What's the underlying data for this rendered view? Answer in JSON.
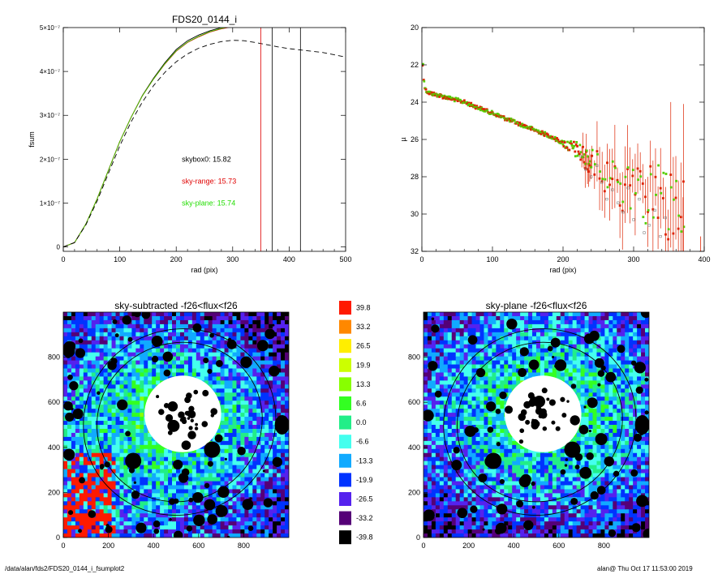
{
  "footer": {
    "path": "/data/alan/fds2/FDS20_0144_i_fsumplot2",
    "stamp": "alan@  Thu Oct 17 11:53:00 2019"
  },
  "chart_data": [
    {
      "id": "fsum",
      "type": "line",
      "title": "FDS20_0144_i",
      "xlabel": "rad (pix)",
      "ylabel": "fsum",
      "xlim": [
        0,
        500
      ],
      "ylim": [
        -1e-08,
        5e-07
      ],
      "xticks": [
        "0",
        "100",
        "200",
        "300",
        "400",
        "500"
      ],
      "yticks": [
        {
          "v": 0,
          "label": "0"
        },
        {
          "v": 1e-07,
          "label": "1×10⁻⁷"
        },
        {
          "v": 2e-07,
          "label": "2×10⁻⁷"
        },
        {
          "v": 3e-07,
          "label": "3×10⁻⁷"
        },
        {
          "v": 4e-07,
          "label": "4×10⁻⁷"
        },
        {
          "v": 5e-07,
          "label": "5×10⁻⁷"
        }
      ],
      "series": [
        {
          "color": "#000000",
          "dash": "none",
          "x": [
            0,
            20,
            40,
            60,
            80,
            100,
            120,
            140,
            160,
            180,
            200,
            220,
            240,
            260,
            280,
            300
          ],
          "y": [
            0,
            1e-08,
            5.2e-08,
            1.1e-07,
            1.75e-07,
            2.4e-07,
            2.95e-07,
            3.45e-07,
            3.85e-07,
            4.2e-07,
            4.5e-07,
            4.7e-07,
            4.83e-07,
            4.93e-07,
            5e-07,
            5.05e-07
          ]
        },
        {
          "color": "#e00000",
          "dash": "none",
          "x": [
            0,
            20,
            40,
            60,
            80,
            100,
            120,
            140,
            160,
            180,
            200,
            220,
            240,
            260,
            280,
            300
          ],
          "y": [
            0,
            1e-08,
            5.2e-08,
            1.1e-07,
            1.75e-07,
            2.4e-07,
            2.95e-07,
            3.44e-07,
            3.83e-07,
            4.17e-07,
            4.46e-07,
            4.66e-07,
            4.79e-07,
            4.9e-07,
            4.97e-07,
            5.02e-07
          ]
        },
        {
          "color": "#44cc00",
          "dash": "none",
          "x": [
            0,
            20,
            40,
            60,
            80,
            100,
            120,
            140,
            160,
            180,
            200,
            220,
            240,
            260,
            280,
            300
          ],
          "y": [
            0,
            1e-08,
            5.2e-08,
            1.1e-07,
            1.75e-07,
            2.4e-07,
            2.95e-07,
            3.44e-07,
            3.83e-07,
            4.18e-07,
            4.47e-07,
            4.67e-07,
            4.8e-07,
            4.91e-07,
            4.98e-07,
            5.03e-07
          ]
        },
        {
          "color": "#000000",
          "dash": "6,4",
          "x": [
            0,
            20,
            40,
            60,
            80,
            100,
            120,
            140,
            160,
            180,
            200,
            220,
            240,
            260,
            280,
            300,
            320,
            340,
            360,
            380,
            400,
            420,
            440,
            460,
            480,
            500
          ],
          "y": [
            0,
            1e-08,
            5e-08,
            1.05e-07,
            1.68e-07,
            2.3e-07,
            2.85e-07,
            3.3e-07,
            3.68e-07,
            3.98e-07,
            4.22e-07,
            4.4e-07,
            4.53e-07,
            4.62e-07,
            4.68e-07,
            4.71e-07,
            4.7e-07,
            4.66e-07,
            4.61e-07,
            4.56e-07,
            4.52e-07,
            4.49e-07,
            4.46e-07,
            4.43e-07,
            4.38e-07,
            4.33e-07
          ]
        }
      ],
      "vlines": [
        {
          "x": 350,
          "color": "#e00000"
        },
        {
          "x": 370,
          "color": "#000000"
        },
        {
          "x": 420,
          "color": "#000000"
        }
      ],
      "annotations": [
        {
          "text": "skybox0: 15.82",
          "color": "#000000",
          "x": 210,
          "y": 2e-07
        },
        {
          "text": "sky-range: 15.73",
          "color": "#e00000",
          "x": 210,
          "y": 1.5e-07
        },
        {
          "text": "sky-plane: 15.74",
          "color": "#22dd00",
          "x": 210,
          "y": 1e-07
        }
      ]
    },
    {
      "id": "profile",
      "type": "scatter",
      "xlabel": "rad (pix)",
      "ylabel": "µ",
      "xlim": [
        0,
        400
      ],
      "ylim": [
        32,
        20
      ],
      "xticks": [
        "0",
        "100",
        "200",
        "300",
        "400"
      ],
      "yticks": [
        "20",
        "22",
        "24",
        "26",
        "28",
        "30",
        "32"
      ],
      "profile_points": [
        [
          1,
          22.0
        ],
        [
          2,
          22.6
        ],
        [
          4,
          23.2
        ],
        [
          6,
          23.4
        ],
        [
          10,
          23.5
        ],
        [
          20,
          23.6
        ],
        [
          30,
          23.7
        ],
        [
          40,
          23.8
        ],
        [
          50,
          23.9
        ],
        [
          60,
          24.0
        ],
        [
          70,
          24.15
        ],
        [
          80,
          24.3
        ],
        [
          90,
          24.45
        ],
        [
          100,
          24.6
        ],
        [
          110,
          24.75
        ],
        [
          120,
          24.9
        ],
        [
          130,
          25.05
        ],
        [
          140,
          25.2
        ],
        [
          150,
          25.35
        ],
        [
          160,
          25.5
        ],
        [
          170,
          25.65
        ],
        [
          180,
          25.8
        ],
        [
          190,
          26.0
        ],
        [
          200,
          26.2
        ],
        [
          210,
          26.4
        ],
        [
          220,
          26.6
        ],
        [
          230,
          26.9
        ],
        [
          240,
          27.2
        ],
        [
          250,
          27.5
        ],
        [
          260,
          27.9
        ],
        [
          270,
          28.2
        ],
        [
          280,
          28.5
        ],
        [
          290,
          28.8
        ],
        [
          300,
          28.6
        ],
        [
          310,
          29.0
        ],
        [
          320,
          29.2
        ],
        [
          330,
          29.0
        ],
        [
          340,
          29.4
        ],
        [
          350,
          29.6
        ],
        [
          360,
          30.0
        ],
        [
          370,
          30.4
        ]
      ],
      "grey_points": [
        [
          225,
          26.9
        ],
        [
          232,
          27.6
        ],
        [
          240,
          28.0
        ],
        [
          248,
          27.4
        ],
        [
          255,
          28.3
        ],
        [
          262,
          29.2
        ],
        [
          270,
          28.7
        ],
        [
          278,
          29.4
        ],
        [
          285,
          29.9
        ],
        [
          292,
          28.6
        ],
        [
          300,
          30.3
        ],
        [
          308,
          29.2
        ],
        [
          315,
          31.0
        ],
        [
          322,
          30.6
        ],
        [
          330,
          29.8
        ],
        [
          338,
          31.2
        ],
        [
          345,
          30.2
        ]
      ],
      "series": [
        {
          "color": "#dd2200",
          "role": "sky-range"
        },
        {
          "color": "#55cc00",
          "role": "sky-plane"
        },
        {
          "color": "#808080",
          "role": "skybox0"
        }
      ]
    },
    {
      "id": "map1",
      "type": "heatmap",
      "title": "sky-subtracted -f26<flux<f26",
      "xticks": [
        "0",
        "200",
        "400",
        "600",
        "800"
      ],
      "yticks": [
        "0",
        "200",
        "400",
        "600",
        "800"
      ],
      "xlim": [
        0,
        1000
      ],
      "ylim": [
        0,
        1000
      ]
    },
    {
      "id": "map2",
      "type": "heatmap",
      "title": "sky-plane -f26<flux<f26",
      "xticks": [
        "0",
        "200",
        "400",
        "600",
        "800"
      ],
      "yticks": [
        "0",
        "200",
        "400",
        "600",
        "800"
      ],
      "xlim": [
        0,
        1000
      ],
      "ylim": [
        0,
        1000
      ]
    },
    {
      "id": "colorbar",
      "type": "table",
      "labels": [
        "39.8",
        "33.2",
        "26.5",
        "19.9",
        "13.3",
        "6.6",
        "0.0",
        "-6.6",
        "-13.3",
        "-19.9",
        "-26.5",
        "-33.2",
        "-39.8"
      ],
      "colors": [
        "#ff1a00",
        "#ff8800",
        "#ffee00",
        "#ccff00",
        "#88ff00",
        "#33ff22",
        "#22ee88",
        "#44ffee",
        "#11aaff",
        "#0033ff",
        "#5522ee",
        "#550077",
        "#000000"
      ]
    }
  ]
}
